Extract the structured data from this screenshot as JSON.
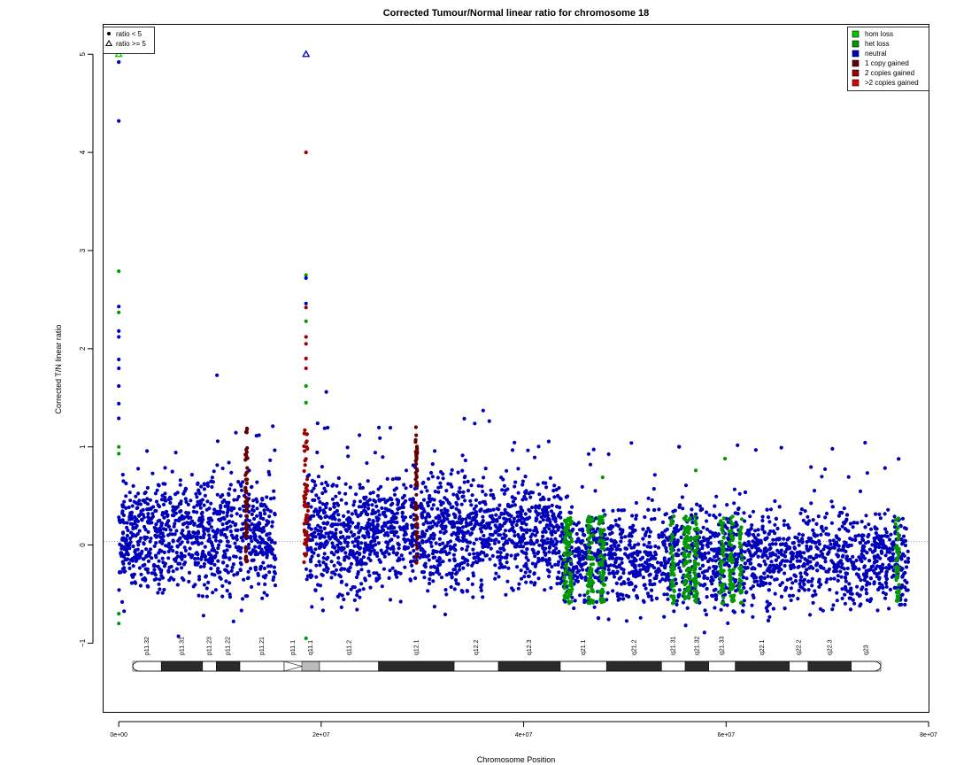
{
  "chart_data": {
    "type": "scatter",
    "title": "Corrected Tumour/Normal linear ratio for chromosome  18",
    "xlabel": "Chromosome Position",
    "ylabel": "Corrected T/N linear ratio",
    "xlim": [
      -1500000,
      80000000
    ],
    "ylim": [
      -1.7,
      5.3
    ],
    "x_ticks": [
      0,
      20000000,
      40000000,
      60000000,
      80000000
    ],
    "x_tick_labels": [
      "0e+00",
      "2e+07",
      "4e+07",
      "6e+07",
      "8e+07"
    ],
    "y_ticks": [
      -1,
      0,
      1,
      2,
      3,
      4,
      5
    ],
    "y_tick_labels": [
      "−1",
      "0",
      "1",
      "2",
      "3",
      "4",
      "5"
    ],
    "reference_line_y": 0,
    "shape_legend": {
      "position": "top-left",
      "items": [
        {
          "label": "ratio < 5",
          "symbol": "dot"
        },
        {
          "label": "ratio >= 5",
          "symbol": "triangle"
        }
      ]
    },
    "color_legend": {
      "position": "top-right",
      "items": [
        {
          "label": "hom loss",
          "color": "#00cc00"
        },
        {
          "label": "het loss",
          "color": "#009900"
        },
        {
          "label": "neutral",
          "color": "#0000bb"
        },
        {
          "label": "1 copy gained",
          "color": "#660000"
        },
        {
          "label": "2 copies gained",
          "color": "#990000"
        },
        {
          "label": ">2 copies gained",
          "color": "#dd0000"
        }
      ]
    },
    "segments": [
      {
        "start": 0,
        "end": 15500000,
        "center": 0.08,
        "spread": 0.5,
        "status": "neutral"
      },
      {
        "start": 18500000,
        "end": 24200000,
        "center": 0.08,
        "spread": 0.55,
        "status": "neutral"
      },
      {
        "start": 24200000,
        "end": 43800000,
        "center": 0.15,
        "spread": 0.5,
        "status": "neutral"
      },
      {
        "start": 43800000,
        "end": 78000000,
        "center": -0.12,
        "spread": 0.45,
        "status": "neutral"
      }
    ],
    "outliers": [
      {
        "x": 0,
        "y": 5.0,
        "status": "hom loss",
        "shape": "triangle"
      },
      {
        "x": 18500000,
        "y": 5.0,
        "status": "neutral",
        "shape": "triangle"
      },
      {
        "x": 0,
        "y": 4.92,
        "status": "neutral"
      },
      {
        "x": 0,
        "y": 4.32,
        "status": "neutral"
      },
      {
        "x": 0,
        "y": 2.79,
        "status": "het loss"
      },
      {
        "x": 0,
        "y": 2.43,
        "status": "neutral"
      },
      {
        "x": 0,
        "y": 2.37,
        "status": "het loss"
      },
      {
        "x": 0,
        "y": 2.18,
        "status": "neutral"
      },
      {
        "x": 0,
        "y": 2.12,
        "status": "neutral"
      },
      {
        "x": 0,
        "y": 1.89,
        "status": "neutral"
      },
      {
        "x": 0,
        "y": 1.8,
        "status": "neutral"
      },
      {
        "x": 0,
        "y": 1.62,
        "status": "neutral"
      },
      {
        "x": 0,
        "y": 1.44,
        "status": "neutral"
      },
      {
        "x": 0,
        "y": 1.29,
        "status": "neutral"
      },
      {
        "x": 0,
        "y": 1.0,
        "status": "het loss"
      },
      {
        "x": 0,
        "y": 0.93,
        "status": "het loss"
      },
      {
        "x": 0,
        "y": -0.7,
        "status": "het loss"
      },
      {
        "x": 0,
        "y": -0.8,
        "status": "het loss"
      },
      {
        "x": 18500000,
        "y": 4.0,
        "status": "2 copies gained"
      },
      {
        "x": 18500000,
        "y": 2.75,
        "status": "het loss"
      },
      {
        "x": 18500000,
        "y": 2.72,
        "status": "neutral"
      },
      {
        "x": 18500000,
        "y": 2.46,
        "status": "neutral"
      },
      {
        "x": 18500000,
        "y": 2.42,
        "status": "2 copies gained"
      },
      {
        "x": 18500000,
        "y": 2.28,
        "status": "het loss"
      },
      {
        "x": 18500000,
        "y": 2.12,
        "status": "2 copies gained"
      },
      {
        "x": 18500000,
        "y": 2.05,
        "status": "2 copies gained"
      },
      {
        "x": 18500000,
        "y": 1.9,
        "status": "2 copies gained"
      },
      {
        "x": 18500000,
        "y": 1.8,
        "status": "2 copies gained"
      },
      {
        "x": 18500000,
        "y": 1.62,
        "status": "het loss"
      },
      {
        "x": 18500000,
        "y": 1.45,
        "status": "het loss"
      },
      {
        "x": 18500000,
        "y": -0.95,
        "status": "het loss"
      },
      {
        "x": 20500000,
        "y": 1.56,
        "status": "neutral"
      },
      {
        "x": 9700000,
        "y": 1.73,
        "status": "neutral"
      },
      {
        "x": 36000000,
        "y": 1.37,
        "status": "neutral"
      },
      {
        "x": 5900000,
        "y": -0.93,
        "status": "neutral"
      },
      {
        "x": 59900000,
        "y": 0.88,
        "status": "het loss"
      },
      {
        "x": 57000000,
        "y": 0.76,
        "status": "het loss"
      },
      {
        "x": 47800000,
        "y": 0.69,
        "status": "het loss"
      },
      {
        "x": 70500000,
        "y": 0.98,
        "status": "neutral"
      }
    ],
    "loss_regions": [
      {
        "start": 44000000,
        "end": 44800000,
        "status": "het loss"
      },
      {
        "start": 46300000,
        "end": 46900000,
        "status": "het loss"
      },
      {
        "start": 47400000,
        "end": 48000000,
        "status": "het loss"
      },
      {
        "start": 54500000,
        "end": 54900000,
        "status": "het loss"
      },
      {
        "start": 55800000,
        "end": 56500000,
        "status": "het loss"
      },
      {
        "start": 56800000,
        "end": 57300000,
        "status": "het loss"
      },
      {
        "start": 59400000,
        "end": 59800000,
        "status": "het loss"
      },
      {
        "start": 60300000,
        "end": 60800000,
        "status": "het loss"
      },
      {
        "start": 61300000,
        "end": 61600000,
        "status": "het loss"
      },
      {
        "start": 76700000,
        "end": 77100000,
        "status": "het loss"
      }
    ],
    "gain_regions": [
      {
        "start": 12500000,
        "end": 12700000,
        "status": "1 copy gained"
      },
      {
        "start": 18300000,
        "end": 18700000,
        "status": "2 copies gained"
      },
      {
        "start": 29300000,
        "end": 29500000,
        "status": "1 copy gained"
      }
    ],
    "ideogram": {
      "bands": [
        {
          "name": "p11.32",
          "start": 0,
          "end": 2900000,
          "stain": "gneg"
        },
        {
          "name": "p11.31",
          "start": 2900000,
          "end": 7100000,
          "stain": "gpos"
        },
        {
          "name": "p11.23",
          "start": 7100000,
          "end": 8500000,
          "stain": "gneg"
        },
        {
          "name": "p11.22",
          "start": 8500000,
          "end": 10900000,
          "stain": "gpos"
        },
        {
          "name": "p11.21",
          "start": 10900000,
          "end": 15400000,
          "stain": "gneg"
        },
        {
          "name": "p11.1",
          "start": 15400000,
          "end": 17200000,
          "stain": "acen"
        },
        {
          "name": "q11.1",
          "start": 17200000,
          "end": 19000000,
          "stain": "gvar"
        },
        {
          "name": "q11.2",
          "start": 19000000,
          "end": 25000000,
          "stain": "gneg"
        },
        {
          "name": "q12.1",
          "start": 25000000,
          "end": 32700000,
          "stain": "gpos"
        },
        {
          "name": "q12.2",
          "start": 32700000,
          "end": 37200000,
          "stain": "gneg"
        },
        {
          "name": "q12.3",
          "start": 37200000,
          "end": 43500000,
          "stain": "gpos"
        },
        {
          "name": "q21.1",
          "start": 43500000,
          "end": 48200000,
          "stain": "gneg"
        },
        {
          "name": "q21.2",
          "start": 48200000,
          "end": 53800000,
          "stain": "gpos"
        },
        {
          "name": "q21.31",
          "start": 53800000,
          "end": 56200000,
          "stain": "gneg"
        },
        {
          "name": "q21.32",
          "start": 56200000,
          "end": 58600000,
          "stain": "gpos"
        },
        {
          "name": "q21.33",
          "start": 58600000,
          "end": 61300000,
          "stain": "gneg"
        },
        {
          "name": "q22.1",
          "start": 61300000,
          "end": 66800000,
          "stain": "gpos"
        },
        {
          "name": "q22.2",
          "start": 66800000,
          "end": 68700000,
          "stain": "gneg"
        },
        {
          "name": "q22.3",
          "start": 68700000,
          "end": 73100000,
          "stain": "gpos"
        },
        {
          "name": "q23",
          "start": 73100000,
          "end": 76100000,
          "stain": "gneg"
        }
      ],
      "length": 76100000
    }
  }
}
